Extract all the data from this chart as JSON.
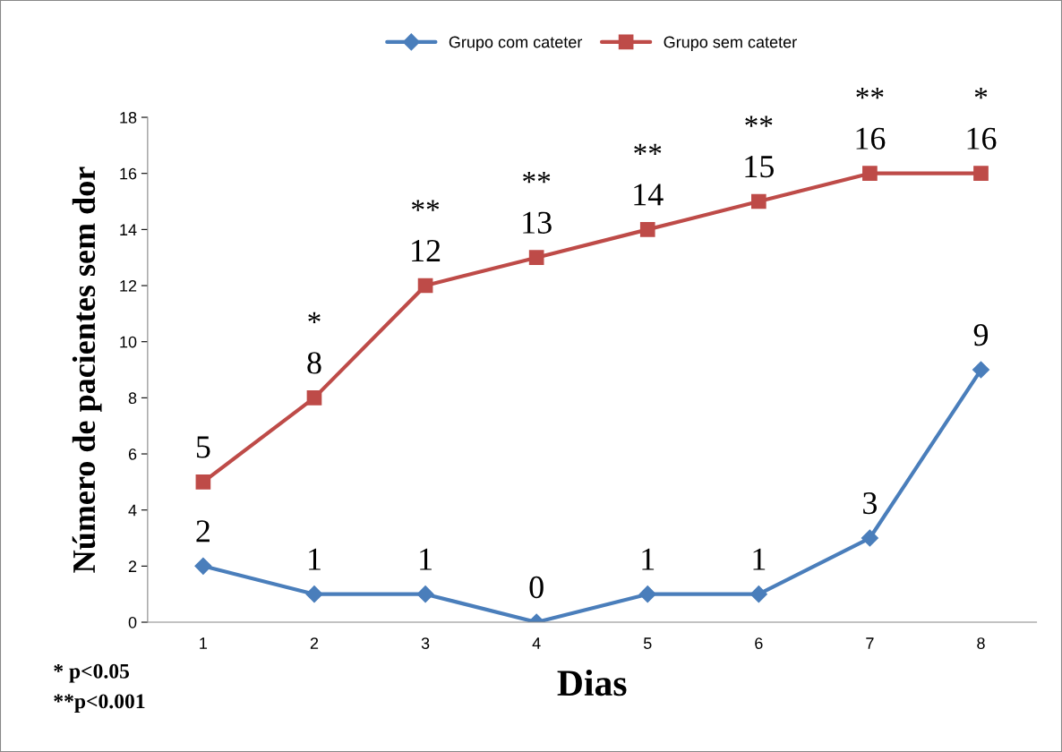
{
  "chart_data": {
    "type": "line",
    "categories": [
      "1",
      "2",
      "3",
      "4",
      "5",
      "6",
      "7",
      "8"
    ],
    "xlabel": "Dias",
    "ylabel": "Número de pacientes sem dor",
    "ylim": [
      0,
      18
    ],
    "yticks": [
      0,
      2,
      4,
      6,
      8,
      10,
      12,
      14,
      16,
      18
    ],
    "grid": false,
    "legend": "top",
    "data_labels": true,
    "line_style": "solid",
    "series": [
      {
        "name": "Grupo com cateter",
        "color": "#4a7ebb",
        "marker": "diamond",
        "values": [
          2,
          1,
          1,
          0,
          1,
          1,
          3,
          9
        ]
      },
      {
        "name": "Grupo sem cateter",
        "color": "#be4b48",
        "marker": "square",
        "values": [
          5,
          8,
          12,
          13,
          14,
          15,
          16,
          16
        ]
      }
    ],
    "annotations": [
      {
        "text": "*",
        "x": "2",
        "y": 8
      },
      {
        "text": "**",
        "x": "3",
        "y": 12
      },
      {
        "text": "**",
        "x": "4",
        "y": 13
      },
      {
        "text": "**",
        "x": "5",
        "y": 14
      },
      {
        "text": "**",
        "x": "6",
        "y": 15
      },
      {
        "text": "**",
        "x": "7",
        "y": 16
      },
      {
        "text": "*",
        "x": "8",
        "y": 16
      },
      "* p<0.05",
      "**p<0.001"
    ]
  }
}
